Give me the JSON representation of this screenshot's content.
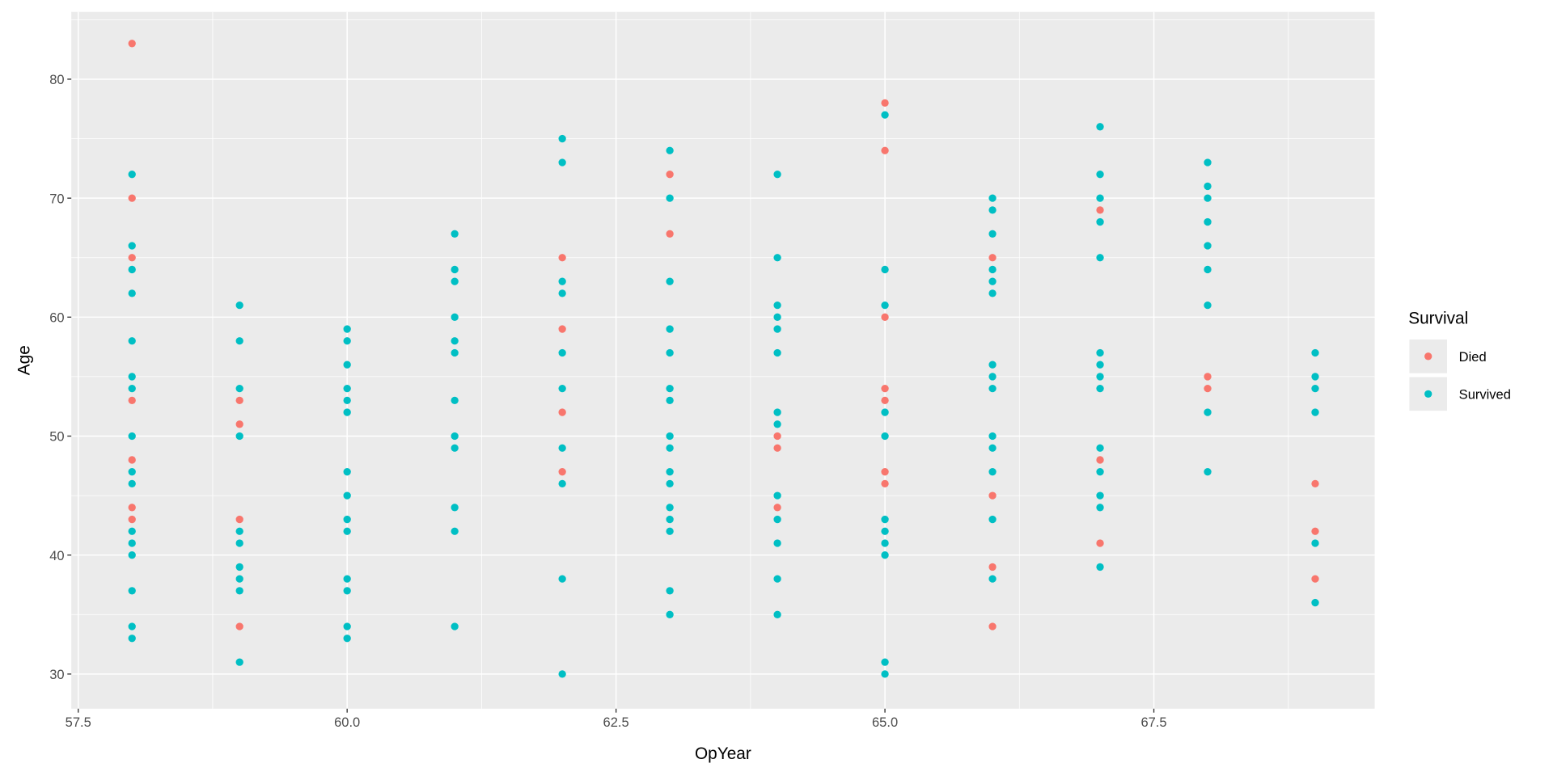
{
  "chart_data": {
    "type": "scatter",
    "title": "",
    "xlabel": "OpYear",
    "ylabel": "Age",
    "xlim": [
      57.43,
      69.57
    ],
    "ylim": [
      27.3,
      85.6
    ],
    "x_ticks": [
      57.5,
      60.0,
      62.5,
      65.0,
      67.5
    ],
    "x_tick_labels": [
      "57.5",
      "60.0",
      "62.5",
      "65.0",
      "67.5"
    ],
    "y_ticks": [
      30,
      40,
      50,
      60,
      70,
      80
    ],
    "y_tick_labels": [
      "30",
      "40",
      "50",
      "60",
      "70",
      "80"
    ],
    "grid": true,
    "legend": {
      "title": "Survival",
      "placement": "right"
    },
    "series": [
      {
        "name": "Died",
        "color": "#F8766D",
        "points": {
          "58": [
            83,
            70,
            65,
            53,
            48,
            44,
            43
          ],
          "59": [
            53,
            51,
            43,
            34
          ],
          "62": [
            65,
            59,
            52,
            47
          ],
          "63": [
            72,
            67
          ],
          "64": [
            50,
            49,
            44
          ],
          "65": [
            78,
            74,
            60,
            54,
            53,
            47,
            46
          ],
          "66": [
            65,
            45,
            39,
            34
          ],
          "67": [
            69,
            48,
            41
          ],
          "68": [
            55,
            54
          ],
          "69": [
            46,
            42,
            38
          ]
        }
      },
      {
        "name": "Survived",
        "color": "#00BFC4",
        "points": {
          "58": [
            72,
            66,
            64,
            62,
            58,
            55,
            54,
            50,
            47,
            46,
            42,
            41,
            40,
            37,
            34,
            33
          ],
          "59": [
            61,
            58,
            54,
            50,
            42,
            41,
            39,
            38,
            37,
            31
          ],
          "60": [
            59,
            58,
            56,
            54,
            53,
            52,
            47,
            45,
            43,
            42,
            38,
            37,
            34,
            33
          ],
          "61": [
            67,
            64,
            63,
            60,
            58,
            57,
            53,
            50,
            49,
            44,
            42,
            34
          ],
          "62": [
            75,
            73,
            63,
            62,
            57,
            54,
            49,
            46,
            38,
            30
          ],
          "63": [
            74,
            70,
            63,
            59,
            57,
            54,
            53,
            50,
            49,
            47,
            46,
            44,
            43,
            42,
            37,
            35
          ],
          "64": [
            72,
            65,
            61,
            60,
            59,
            57,
            52,
            51,
            45,
            43,
            41,
            38,
            35
          ],
          "65": [
            77,
            64,
            61,
            52,
            50,
            43,
            42,
            41,
            40,
            31,
            30
          ],
          "66": [
            70,
            69,
            67,
            64,
            63,
            62,
            56,
            55,
            54,
            50,
            49,
            47,
            43,
            38
          ],
          "67": [
            76,
            72,
            70,
            68,
            65,
            57,
            56,
            55,
            54,
            49,
            47,
            45,
            44,
            39
          ],
          "68": [
            73,
            71,
            70,
            68,
            66,
            64,
            61,
            52,
            47
          ],
          "69": [
            57,
            55,
            54,
            52,
            41,
            36
          ]
        }
      }
    ]
  }
}
